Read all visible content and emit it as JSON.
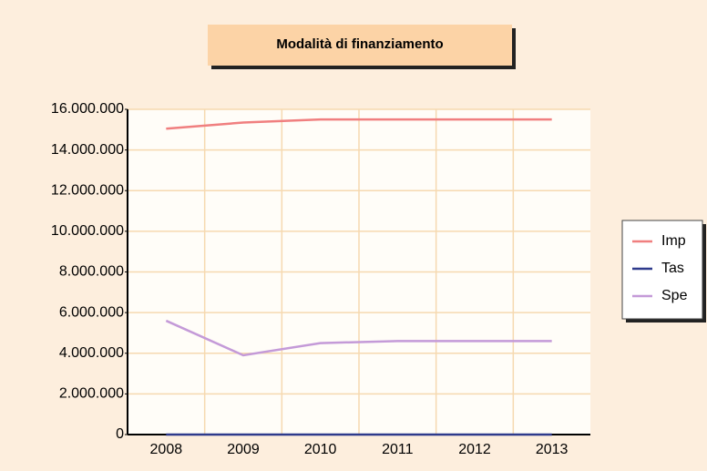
{
  "chart_data": {
    "type": "line",
    "title": "Modalità di finanziamento",
    "categories": [
      "2008",
      "2009",
      "2010",
      "2011",
      "2012",
      "2013"
    ],
    "series": [
      {
        "name": "Imp",
        "color": "#f07f7f",
        "values": [
          15050000,
          15350000,
          15500000,
          15500000,
          15500000,
          15500000
        ]
      },
      {
        "name": "Tas",
        "color": "#2e3a8c",
        "values": [
          0,
          0,
          0,
          0,
          0,
          0
        ]
      },
      {
        "name": "Spe",
        "color": "#c49ad8",
        "values": [
          5600000,
          3900000,
          4500000,
          4600000,
          4600000,
          4600000
        ]
      }
    ],
    "ylim": [
      0,
      16000000
    ],
    "yticks": [
      0,
      {
        "value": 2000000,
        "label": "2.000.000"
      },
      {
        "value": 4000000,
        "label": "4.000.000"
      },
      {
        "value": 6000000,
        "label": "6.000.000"
      },
      {
        "value": 8000000,
        "label": "8.000.000"
      },
      {
        "value": 10000000,
        "label": "10.000.000"
      },
      {
        "value": 12000000,
        "label": "12.000.000"
      },
      {
        "value": 14000000,
        "label": "14.000.000"
      },
      {
        "value": 16000000,
        "label": "16.000.000"
      }
    ],
    "grid": true,
    "legend": "right"
  }
}
